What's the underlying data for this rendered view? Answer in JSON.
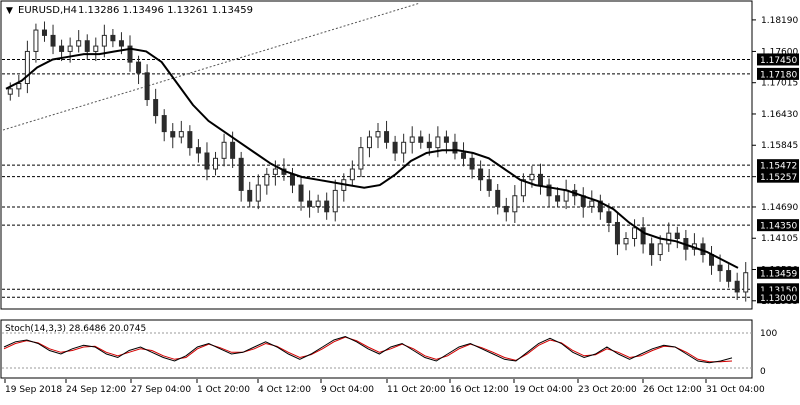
{
  "header": {
    "symbol_timeframe": "EURUSD,H4",
    "ohlc": "1.13286 1.13496 1.13261 1.13459",
    "menu_arrow": "triangle-down-icon"
  },
  "colors": {
    "background": "#ffffff",
    "candle": "#2b2b2b",
    "ma_line": "#000000",
    "level_line": "#000000",
    "trendline": "#555555",
    "stoch_main": "#000000",
    "stoch_signal": "#d40000",
    "axis_text": "#000000",
    "price_box_fill": "#000000",
    "price_box_text": "#ffffff"
  },
  "price_axis": {
    "ticks": [
      "1.18190",
      "1.17600",
      "1.17015",
      "1.16430",
      "1.15845",
      "1.15257",
      "1.14690",
      "1.14105",
      "1.13520",
      "1.12935"
    ],
    "ylim": [
      1.128,
      1.1845
    ]
  },
  "levels": [
    {
      "label": "1.17450",
      "value": 1.1745,
      "boxed": true
    },
    {
      "label": "1.17180",
      "value": 1.1718,
      "boxed": true
    },
    {
      "label": "1.15472",
      "value": 1.15472,
      "boxed": true
    },
    {
      "label": "1.15257",
      "value": 1.15257,
      "boxed": true
    },
    {
      "label": "",
      "value": 1.1469,
      "boxed": false
    },
    {
      "label": "1.14350",
      "value": 1.1435,
      "boxed": true
    },
    {
      "label": "1.13150",
      "value": 1.1315,
      "boxed": true
    },
    {
      "label": "1.13000",
      "value": 1.13,
      "boxed": true
    }
  ],
  "current_price": {
    "label": "1.13459",
    "value": 1.13459
  },
  "time_axis": {
    "labels": [
      "19 Sep 2018",
      "24 Sep 12:00",
      "27 Sep 04:00",
      "1 Oct 20:00",
      "4 Oct 12:00",
      "9 Oct 04:00",
      "11 Oct 20:00",
      "16 Oct 12:00",
      "19 Oct 04:00",
      "23 Oct 20:00",
      "26 Oct 12:00",
      "31 Oct 04:00"
    ]
  },
  "oscillator": {
    "label": "Stoch(14,3,3) 28.6486 20.0745",
    "ticks": [
      "100",
      "0"
    ],
    "main_value": 28.6486,
    "signal_value": 20.0745
  },
  "chart_data": {
    "type": "candlestick",
    "symbol": "EURUSD",
    "timeframe": "H4",
    "close_path": [
      1.169,
      1.17,
      1.176,
      1.18,
      1.179,
      1.177,
      1.176,
      1.177,
      1.178,
      1.176,
      1.177,
      1.179,
      1.178,
      1.177,
      1.174,
      1.172,
      1.167,
      1.164,
      1.161,
      1.16,
      1.161,
      1.158,
      1.157,
      1.154,
      1.156,
      1.159,
      1.156,
      1.15,
      1.148,
      1.151,
      1.153,
      1.154,
      1.153,
      1.151,
      1.148,
      1.147,
      1.148,
      1.146,
      1.15,
      1.152,
      1.154,
      1.158,
      1.16,
      1.161,
      1.159,
      1.157,
      1.159,
      1.16,
      1.159,
      1.158,
      1.16,
      1.159,
      1.157,
      1.156,
      1.154,
      1.152,
      1.15,
      1.147,
      1.146,
      1.149,
      1.152,
      1.153,
      1.151,
      1.149,
      1.148,
      1.15,
      1.149,
      1.147,
      1.148,
      1.146,
      1.144,
      1.14,
      1.141,
      1.143,
      1.14,
      1.138,
      1.14,
      1.142,
      1.141,
      1.139,
      1.14,
      1.138,
      1.136,
      1.135,
      1.133,
      1.131,
      1.1346
    ],
    "moving_average": [
      1.169,
      1.1705,
      1.173,
      1.1745,
      1.175,
      1.1755,
      1.1755,
      1.176,
      1.1765,
      1.176,
      1.174,
      1.17,
      1.166,
      1.163,
      1.161,
      1.159,
      1.157,
      1.155,
      1.1535,
      1.1525,
      1.152,
      1.1515,
      1.151,
      1.1505,
      1.151,
      1.153,
      1.1555,
      1.157,
      1.1575,
      1.1575,
      1.157,
      1.156,
      1.154,
      1.152,
      1.151,
      1.1505,
      1.15,
      1.149,
      1.148,
      1.1465,
      1.144,
      1.142,
      1.141,
      1.1405,
      1.1395,
      1.1385,
      1.137,
      1.1355
    ],
    "stoch_main": [
      60,
      75,
      80,
      70,
      50,
      40,
      55,
      65,
      60,
      40,
      30,
      50,
      60,
      45,
      30,
      20,
      35,
      60,
      70,
      55,
      40,
      45,
      60,
      75,
      60,
      40,
      25,
      40,
      60,
      80,
      90,
      75,
      55,
      40,
      60,
      70,
      50,
      30,
      20,
      40,
      60,
      70,
      55,
      40,
      25,
      20,
      45,
      70,
      85,
      70,
      45,
      30,
      40,
      60,
      40,
      25,
      40,
      55,
      65,
      60,
      40,
      20,
      15,
      20,
      29
    ],
    "stoch_signal": [
      55,
      70,
      78,
      72,
      55,
      45,
      50,
      60,
      62,
      45,
      35,
      45,
      55,
      50,
      35,
      25,
      30,
      55,
      68,
      58,
      45,
      45,
      55,
      70,
      62,
      45,
      30,
      38,
      55,
      75,
      88,
      78,
      60,
      45,
      55,
      68,
      55,
      35,
      25,
      35,
      55,
      68,
      58,
      45,
      30,
      22,
      40,
      65,
      80,
      72,
      50,
      35,
      38,
      55,
      45,
      30,
      35,
      50,
      62,
      60,
      45,
      25,
      18,
      18,
      20
    ]
  }
}
